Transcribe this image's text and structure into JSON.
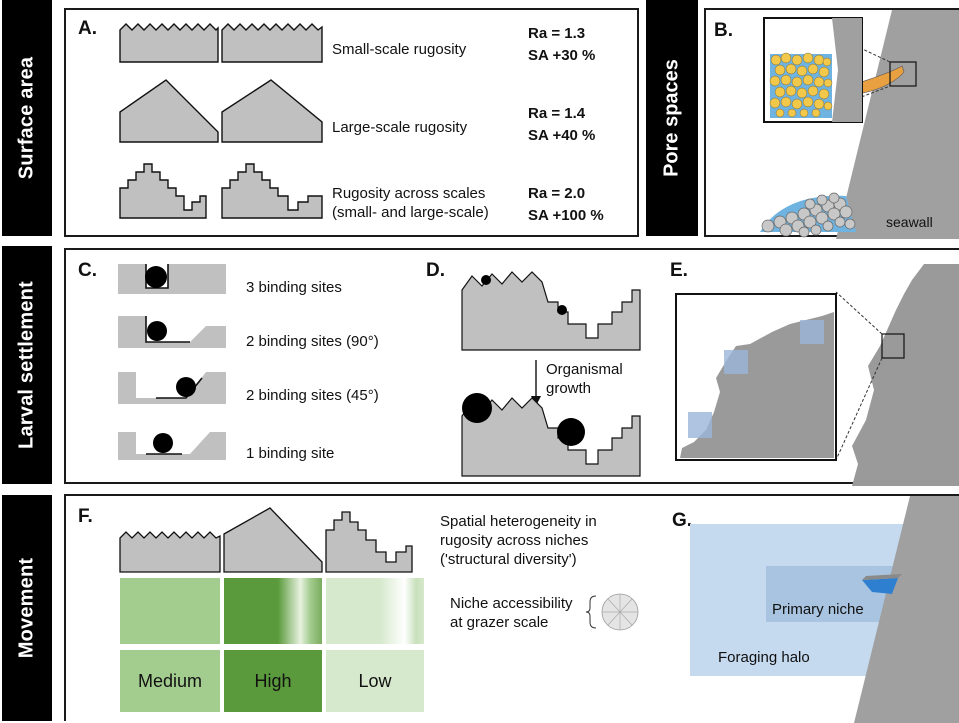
{
  "sidebar": {
    "surface_area": "Surface area",
    "larval_settlement": "Larval settlement",
    "movement": "Movement",
    "pore_spaces": "Pore spaces"
  },
  "panel_a": {
    "label": "A.",
    "rows": [
      {
        "desc": "Small-scale rugosity",
        "desc2": "",
        "ra": "Ra = 1.3",
        "sa": "SA +30 %"
      },
      {
        "desc": "Large-scale rugosity",
        "desc2": "",
        "ra": "Ra = 1.4",
        "sa": "SA +40 %"
      },
      {
        "desc": "Rugosity across scales",
        "desc2": "(small- and large-scale)",
        "ra": "Ra = 2.0",
        "sa": "SA +100 %"
      }
    ]
  },
  "panel_b": {
    "label": "B.",
    "seawall": "seawall"
  },
  "panel_c": {
    "label": "C.",
    "items": [
      "3 binding sites",
      "2 binding sites (90°)",
      "2 binding sites (45°)",
      "1 binding site"
    ]
  },
  "panel_d": {
    "label": "D.",
    "growth_line1": "Organismal",
    "growth_line2": "growth"
  },
  "panel_e": {
    "label": "E."
  },
  "panel_f": {
    "label": "F.",
    "spatial1": "Spatial heterogeneity in",
    "spatial2": "rugosity across niches",
    "spatial3": "('structural diversity')",
    "niche1": "Niche accessibility",
    "niche2": "at grazer scale",
    "levels": [
      "Medium",
      "High",
      "Low"
    ]
  },
  "panel_g": {
    "label": "G.",
    "primary_niche": "Primary niche",
    "foraging_halo": "Foraging halo"
  },
  "colors": {
    "gray_fill": "#c0c0c0",
    "dark_gray": "#8a8a8a",
    "green_medium": "#a3cc8f",
    "green_high": "#5a9a3c",
    "green_low": "#d6e9cc",
    "halo_blue": "#c5d9ef",
    "niche_blue": "#a9c4e0",
    "pool_blue": "#2f7fd0",
    "sand": "#f5c94a"
  }
}
